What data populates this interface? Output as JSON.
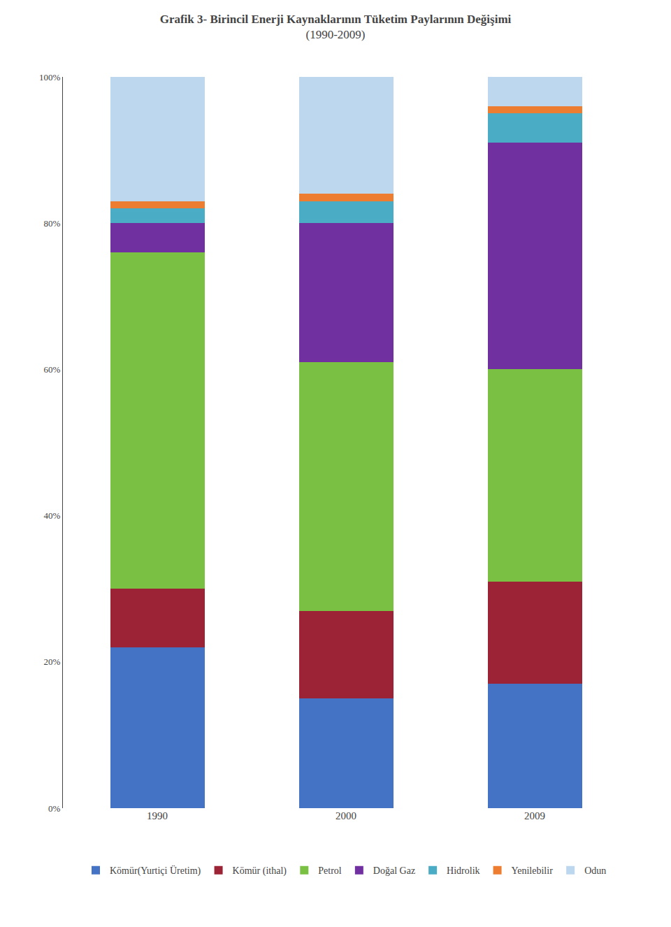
{
  "chart_data": {
    "type": "bar",
    "stacked": true,
    "title": "Grafik 3- Birincil Enerji Kaynaklarının Tüketim Paylarının Değişimi",
    "subtitle": "(1990-2009)",
    "categories": [
      "1990",
      "2000",
      "2009"
    ],
    "series": [
      {
        "name": "Kömür(Yurtiçi Üretim)",
        "color": "#4472C4",
        "values": [
          22,
          15,
          17
        ]
      },
      {
        "name": "Kömür (ithal)",
        "color": "#9B2335",
        "values": [
          8,
          12,
          14
        ]
      },
      {
        "name": "Petrol",
        "color": "#7AC143",
        "values": [
          46,
          34,
          29
        ]
      },
      {
        "name": "Doğal Gaz",
        "color": "#7030A0",
        "values": [
          4,
          19,
          31
        ]
      },
      {
        "name": "Hidrolik",
        "color": "#4BACC6",
        "values": [
          2,
          3,
          4
        ]
      },
      {
        "name": "Yenilebilir",
        "color": "#ED7D31",
        "values": [
          1,
          1,
          1
        ]
      },
      {
        "name": "Odun",
        "color": "#BDD7EE",
        "values": [
          17,
          16,
          4
        ]
      }
    ],
    "ylim": [
      0,
      100
    ],
    "yticks": [
      {
        "value": 0,
        "label": "0%"
      },
      {
        "value": 20,
        "label": "20%"
      },
      {
        "value": 40,
        "label": "40%"
      },
      {
        "value": 60,
        "label": "60%"
      },
      {
        "value": 80,
        "label": "80%"
      },
      {
        "value": 100,
        "label": "100%"
      }
    ],
    "grid": false,
    "legend": "bottom"
  }
}
